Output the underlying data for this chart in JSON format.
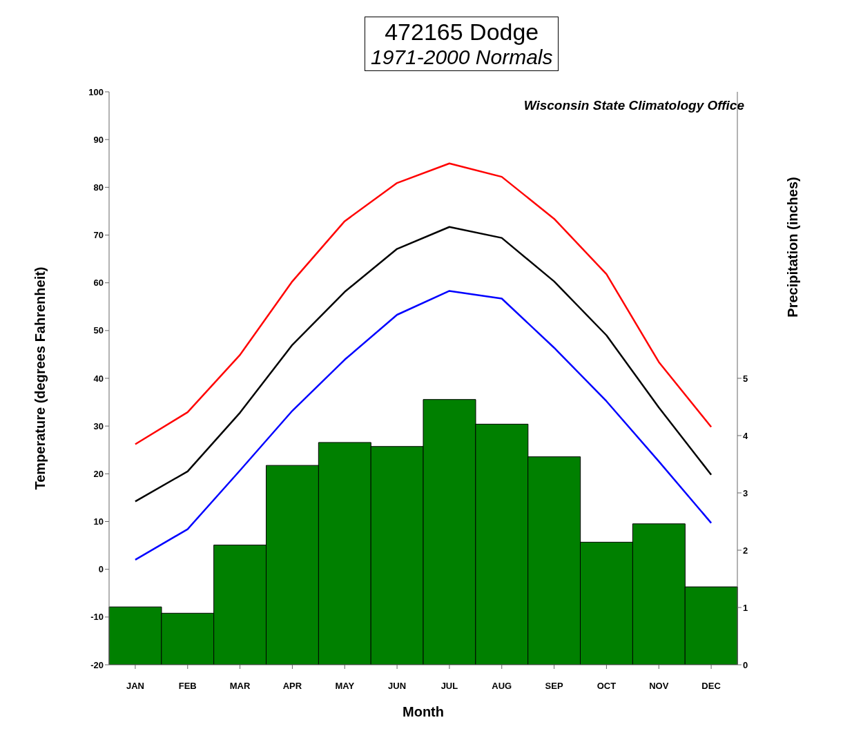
{
  "chart_data": {
    "type": "line",
    "title": "472165 Dodge",
    "subtitle": "1971-2000 Normals",
    "xlabel": "Month",
    "ylabel": "Temperature (degrees Fahrenheit)",
    "y2label": "Precipitation (inches)",
    "annotations": [
      "Wisconsin State Climatology Office"
    ],
    "categories": [
      "JAN",
      "FEB",
      "MAR",
      "APR",
      "MAY",
      "JUN",
      "JUL",
      "AUG",
      "SEP",
      "OCT",
      "NOV",
      "DEC"
    ],
    "marker": "none",
    "series": [
      {
        "type": "bar",
        "axis": "y2",
        "color": "#008000",
        "values": [
          1.01,
          0.9,
          2.09,
          3.48,
          3.88,
          3.81,
          4.63,
          4.2,
          3.63,
          2.14,
          2.46,
          1.36
        ]
      },
      {
        "color": "#ff0000",
        "values": [
          26.2,
          32.9,
          44.9,
          60.3,
          72.9,
          80.9,
          85.0,
          82.2,
          73.4,
          61.8,
          43.4,
          29.8
        ]
      },
      {
        "color": "#000000",
        "values": [
          14.2,
          20.5,
          32.8,
          47.0,
          58.1,
          67.1,
          71.7,
          69.4,
          60.3,
          49.0,
          33.9,
          19.8
        ]
      },
      {
        "color": "#0000ff",
        "values": [
          2.0,
          8.4,
          20.7,
          33.2,
          43.9,
          53.3,
          58.3,
          56.7,
          46.4,
          35.2,
          22.6,
          9.7
        ]
      }
    ],
    "ylim": [
      -20,
      100
    ],
    "yticks": [
      -20,
      -10,
      0,
      10,
      20,
      30,
      40,
      50,
      60,
      70,
      80,
      90,
      100
    ],
    "y2lim": [
      0,
      10
    ],
    "y2ticks": [
      0,
      1,
      2,
      3,
      4,
      5
    ]
  }
}
